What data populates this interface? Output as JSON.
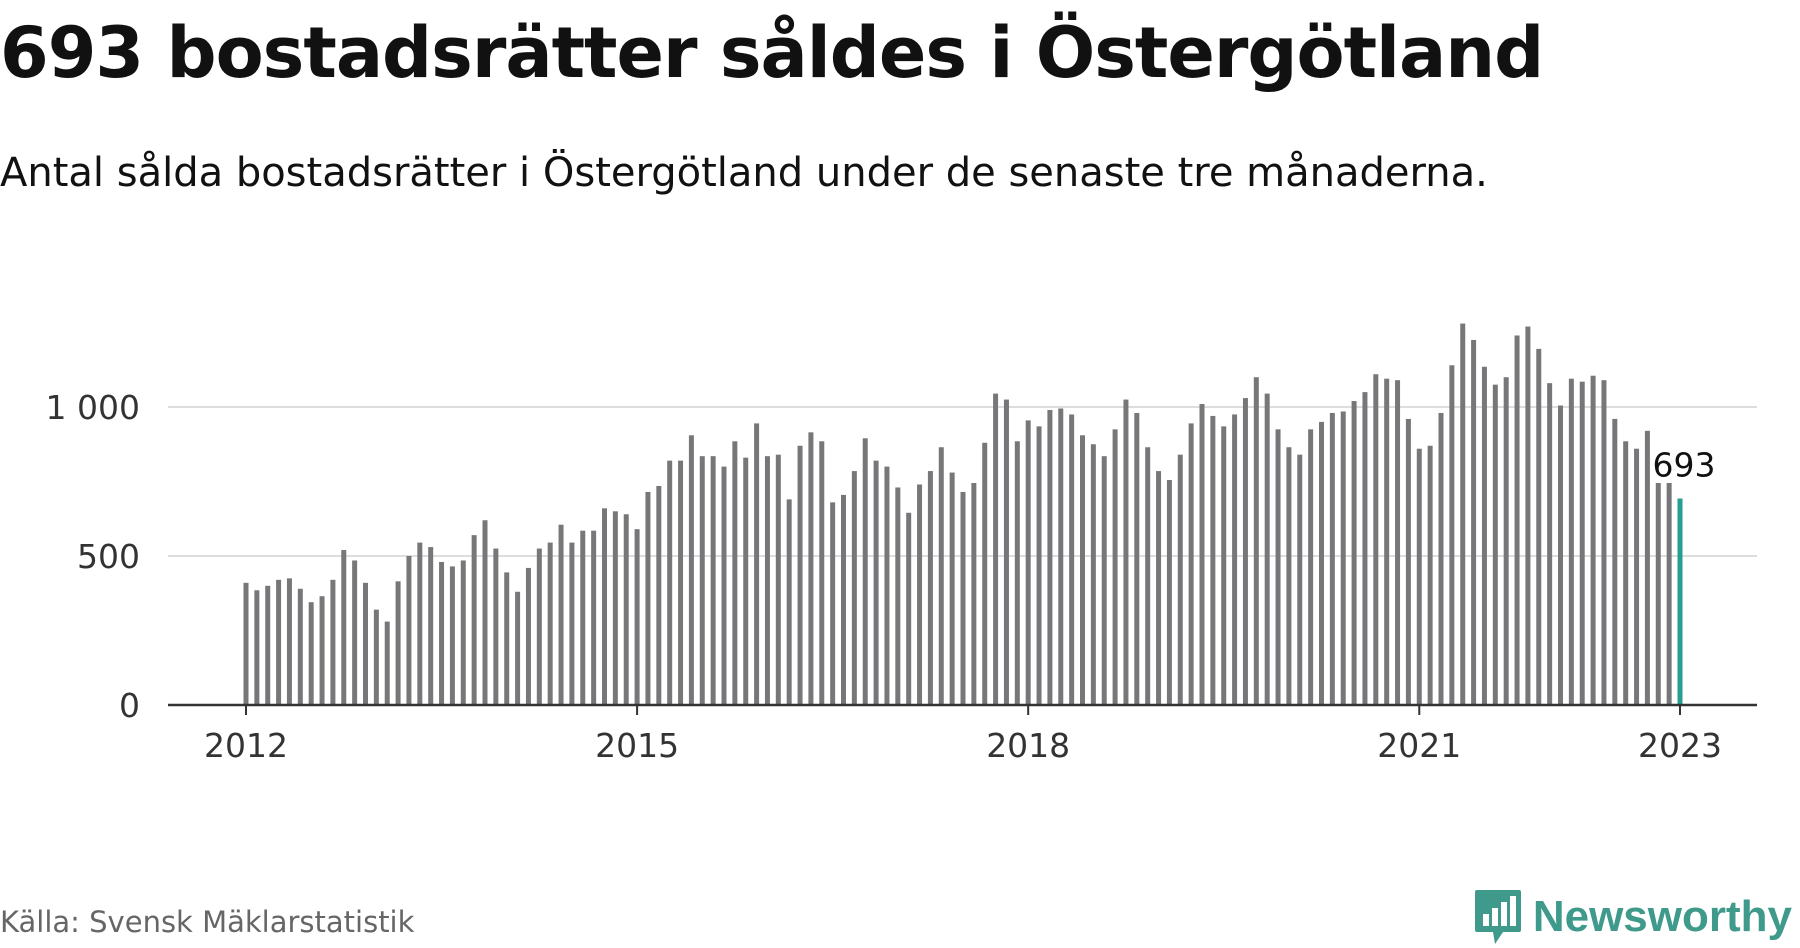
{
  "title": "693 bostadsrätter såldes i Östergötland",
  "subtitle": "Antal sålda bostadsrätter i Östergötland under de senaste tre månaderna.",
  "source": "Källa: Svensk Mäklarstatistik",
  "brand": {
    "name": "Newsworthy",
    "icon": "newsworthy-logo-icon",
    "color": "#3f9a8c"
  },
  "colors": {
    "bar": "#77777a",
    "highlight": "#2a9d91",
    "grid": "#dddddd",
    "axis": "#333333"
  },
  "chart_data": {
    "type": "bar",
    "title": "693 bostadsrätter såldes i Östergötland",
    "subtitle": "Antal sålda bostadsrätter i Östergötland under de senaste tre månaderna.",
    "xlabel": "",
    "ylabel": "",
    "x_start": "2012-01",
    "frequency": "monthly",
    "x_ticks": [
      "2012",
      "2015",
      "2018",
      "2021",
      "2023"
    ],
    "y_ticks": [
      0,
      500,
      1000
    ],
    "y_tick_labels": [
      "0",
      "500",
      "1 000"
    ],
    "ylim": [
      0,
      1300
    ],
    "grid": true,
    "highlight_label": "693",
    "values": [
      410,
      385,
      400,
      420,
      425,
      390,
      345,
      365,
      420,
      520,
      485,
      410,
      320,
      280,
      415,
      500,
      545,
      530,
      480,
      465,
      485,
      570,
      620,
      525,
      445,
      380,
      460,
      525,
      545,
      605,
      545,
      585,
      585,
      660,
      650,
      640,
      590,
      715,
      735,
      820,
      820,
      905,
      835,
      835,
      800,
      885,
      830,
      945,
      835,
      840,
      690,
      870,
      915,
      885,
      680,
      705,
      785,
      895,
      820,
      800,
      730,
      645,
      740,
      785,
      865,
      780,
      715,
      745,
      880,
      1045,
      1025,
      885,
      955,
      935,
      990,
      995,
      975,
      905,
      875,
      835,
      925,
      1025,
      980,
      865,
      785,
      755,
      840,
      945,
      1010,
      970,
      935,
      975,
      1030,
      1100,
      1045,
      925,
      865,
      840,
      925,
      950,
      980,
      985,
      1020,
      1050,
      1110,
      1095,
      1090,
      960,
      860,
      870,
      980,
      1140,
      1280,
      1225,
      1135,
      1075,
      1100,
      1240,
      1270,
      1195,
      1080,
      1005,
      1095,
      1085,
      1105,
      1090,
      960,
      885,
      860,
      920,
      745,
      745,
      693
    ]
  }
}
